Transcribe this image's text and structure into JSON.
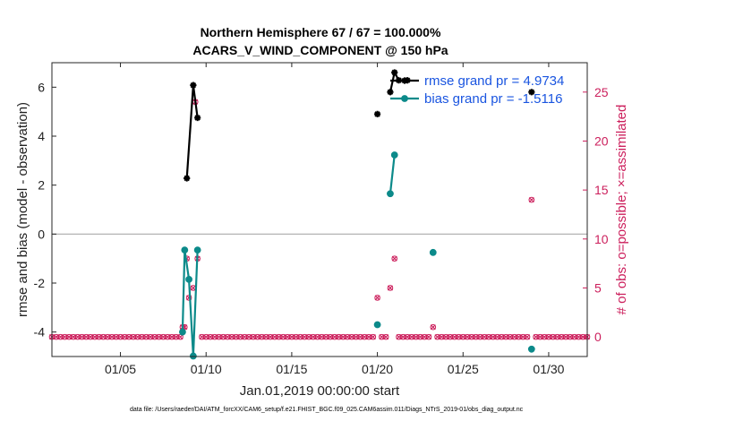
{
  "chart_data": {
    "type": "line",
    "title": "Northern Hemisphere 67 / 67 = 100.000%",
    "subtitle": "ACARS_V_WIND_COMPONENT @ 150 hPa",
    "xlabel": "Jan.01,2019 00:00:00 start",
    "ylabel_left": "rmse and bias (model - observation)",
    "ylabel_right": "# of obs: o=possible; ×=assimilated",
    "footnote": "data file: /Users/raeder/DAI/ATM_forcXX/CAM6_setup/f.e21.FHIST_BGC.f09_025.CAM6assim.011/Diags_NTrS_2019-01/obs_diag_output.nc",
    "xlim": [
      1,
      32.25
    ],
    "ylim_left": [
      -5.0,
      7.0
    ],
    "ylim_right": [
      -2.0,
      28.0
    ],
    "xticks": [
      5,
      10,
      15,
      20,
      25,
      30
    ],
    "xtick_labels": [
      "01/05",
      "01/10",
      "01/15",
      "01/20",
      "01/25",
      "01/30"
    ],
    "yticks_left": [
      -4,
      -2,
      0,
      2,
      4,
      6
    ],
    "ytick_labels_left": [
      "-4",
      "-2",
      "0",
      "2",
      "4",
      "6"
    ],
    "yticks_right": [
      0,
      5,
      10,
      15,
      20,
      25
    ],
    "ytick_labels_right": [
      "0",
      "5",
      "10",
      "15",
      "20",
      "25"
    ],
    "zero_line": 0,
    "legend_position": "top-right",
    "colors": {
      "rmse": "#000000",
      "bias": "#0c8a8a",
      "obs": "#cc1f5c",
      "legend_text": "#1a55e0",
      "zero_line": "#aaaaaa"
    },
    "series": [
      {
        "name": "rmse grand pr = 4.9734",
        "axis": "left",
        "marker": "asterisk",
        "segments": [
          [
            [
              8.875,
              2.28
            ],
            [
              9.25,
              6.08
            ],
            [
              9.5,
              4.75
            ]
          ],
          [
            [
              20.0,
              4.9
            ]
          ],
          [
            [
              20.75,
              5.8
            ],
            [
              21.0,
              6.6
            ],
            [
              21.25,
              6.28
            ],
            [
              21.75,
              6.28
            ]
          ],
          [
            [
              29.0,
              5.8
            ]
          ]
        ]
      },
      {
        "name": "bias grand pr = -1.5116",
        "axis": "left",
        "marker": "circle",
        "segments": [
          [
            [
              8.625,
              -4.0
            ],
            [
              8.75,
              -0.65
            ],
            [
              9.0,
              -1.85
            ],
            [
              9.25,
              -4.98
            ],
            [
              9.5,
              -0.65
            ]
          ],
          [
            [
              20.0,
              -3.7
            ]
          ],
          [
            [
              20.75,
              1.65
            ],
            [
              21.0,
              3.23
            ]
          ],
          [
            [
              23.25,
              -0.75
            ]
          ],
          [
            [
              29.0,
              -4.7
            ]
          ]
        ]
      }
    ],
    "obs_possible": {
      "name": "possible",
      "axis": "right",
      "nonzero": [
        [
          8.625,
          1.0
        ],
        [
          8.75,
          1.0
        ],
        [
          8.875,
          8.0
        ],
        [
          9.0,
          4.0
        ],
        [
          9.25,
          5.0
        ],
        [
          9.375,
          24.0
        ],
        [
          9.5,
          8.0
        ],
        [
          20.0,
          4.0
        ],
        [
          20.75,
          5.0
        ],
        [
          21.0,
          8.0
        ],
        [
          23.25,
          1.0
        ],
        [
          29.0,
          14.0
        ]
      ],
      "zero_from": 1.0,
      "zero_to": 32.25,
      "zero_step": 0.25
    },
    "obs_assimilated": {
      "name": "assimilated",
      "axis": "right",
      "same_as": "obs_possible"
    }
  }
}
